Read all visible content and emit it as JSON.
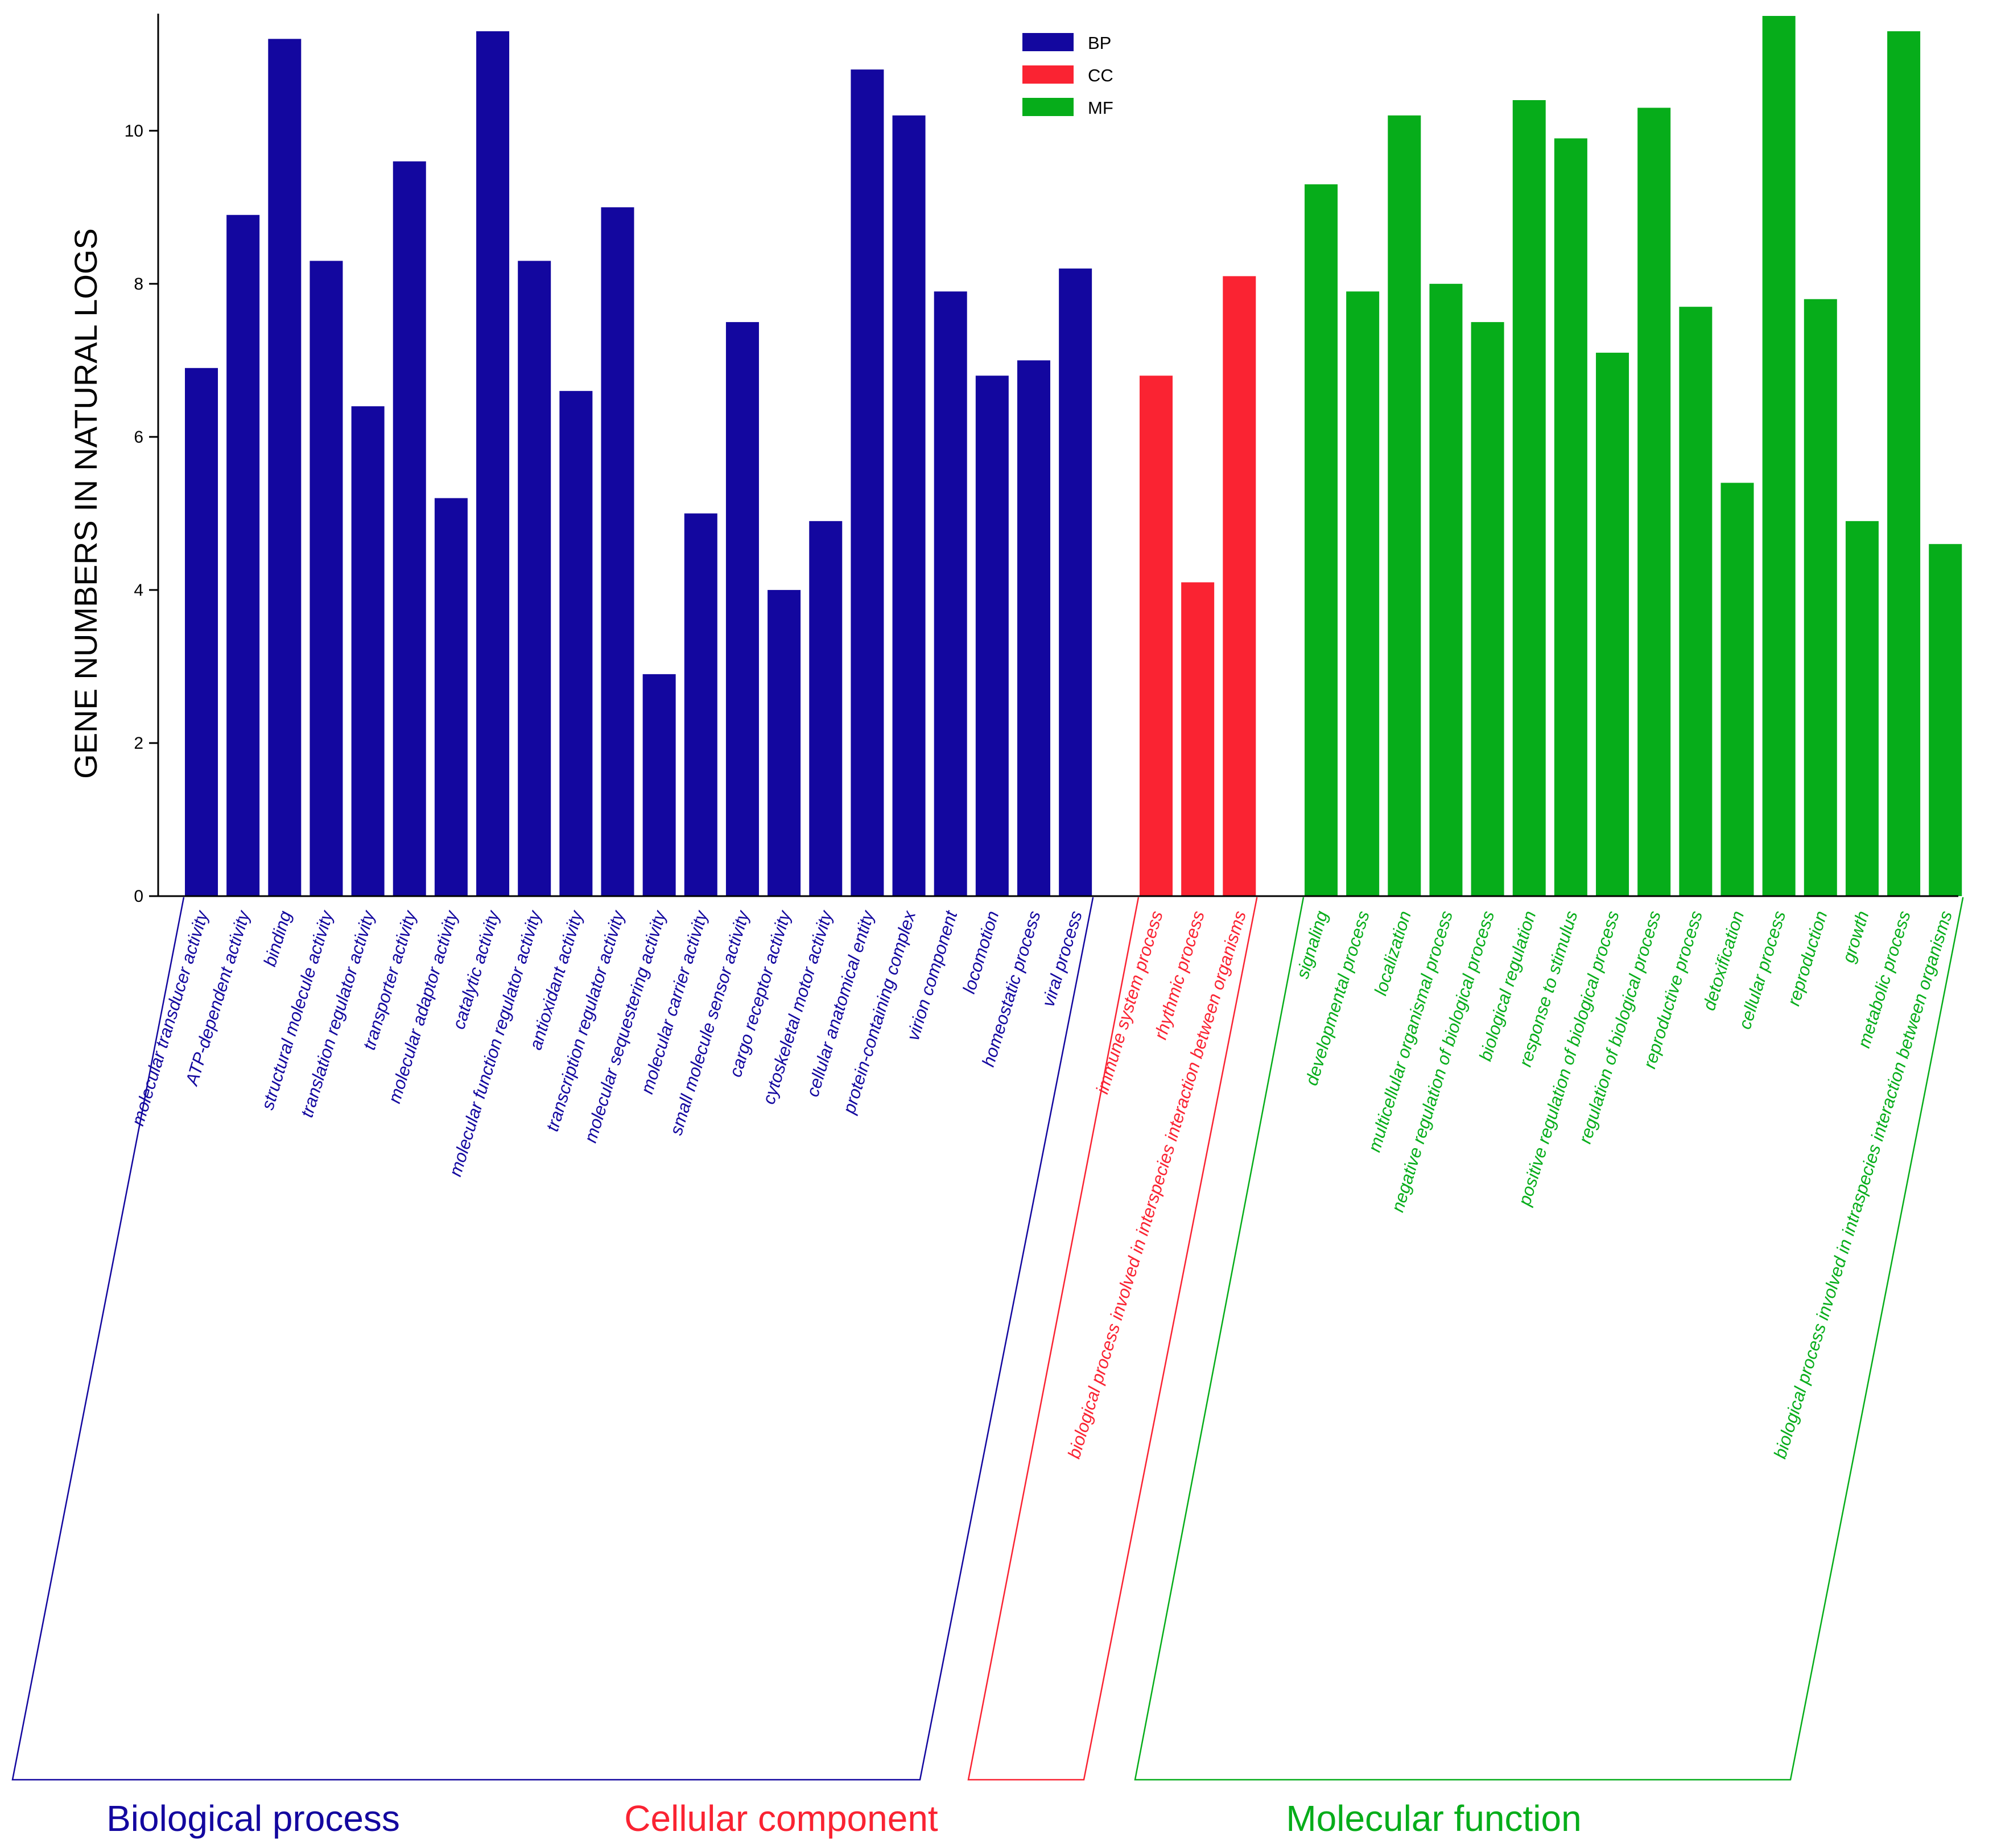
{
  "chart_data": {
    "type": "bar",
    "title": "",
    "xlabel": "",
    "ylabel": "GENE NUMBERS IN NATURAL  LOGS",
    "ylim": [
      0,
      11.5
    ],
    "yticks": [
      0,
      2,
      4,
      6,
      8,
      10
    ],
    "grid": false,
    "legend_position": "top-center",
    "colors": {
      "BP": "#13079f",
      "CC": "#fa2332",
      "MF": "#06ad1a"
    },
    "series": [
      {
        "name": "BP",
        "group_label": "Biological process",
        "categories": [
          "molecular transducer activity",
          "ATP-dependent activity",
          "binding",
          "structural molecule activity",
          "translation regulator activity",
          "transporter activity",
          "molecular adaptor activity",
          "catalytic activity",
          "molecular function regulator activity",
          "antioxidant activity",
          "transcription regulator activity",
          "molecular sequestering activity",
          "molecular carrier activity",
          "small molecule sensor activity",
          "cargo receptor activity",
          "cytoskeletal motor activity",
          "cellular anatomical entity",
          "protein-containing complex",
          "virion component",
          "locomotion",
          "homeostatic process",
          "viral process"
        ],
        "values": [
          6.9,
          8.9,
          11.2,
          8.3,
          6.4,
          9.6,
          5.2,
          11.3,
          8.3,
          6.6,
          9.0,
          2.9,
          5.0,
          7.5,
          4.0,
          4.9,
          10.8,
          10.2,
          7.9,
          6.8,
          7.0,
          8.2
        ]
      },
      {
        "name": "CC",
        "group_label": "Cellular component",
        "categories": [
          "immune system process",
          "rhythmic process",
          "biological process involved in interspecies interaction between organisms"
        ],
        "values": [
          6.8,
          4.1,
          8.1
        ]
      },
      {
        "name": "MF",
        "group_label": "Molecular function",
        "categories": [
          "signaling",
          "developmental process",
          "localization",
          "multicellular organismal process",
          "negative regulation of biological process",
          "biological regulation",
          "response to stimulus",
          "positive regulation of biological process",
          "regulation of biological process",
          "reproductive process",
          "detoxification",
          "cellular process",
          "reproduction",
          "growth",
          "metabolic process",
          "biological process involved in intraspecies interaction between organisms"
        ],
        "values": [
          9.3,
          7.9,
          10.2,
          8.0,
          7.5,
          10.4,
          9.9,
          7.1,
          10.3,
          7.7,
          5.4,
          11.5,
          7.8,
          4.9,
          11.3,
          4.6
        ]
      }
    ]
  }
}
